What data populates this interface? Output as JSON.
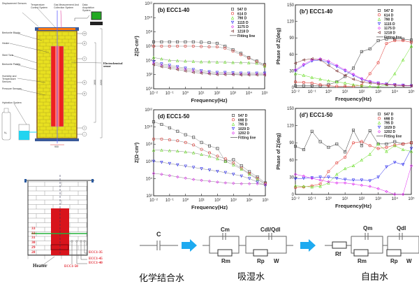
{
  "apparatus": {
    "labels": {
      "displacement": "Displacement Sensors",
      "temperature": "Temperature Control System",
      "gas": "Gas Measurement And Collection System",
      "daq": "Data Acquisition System",
      "blocks": "Bentonite Blocks",
      "heater": "Heater",
      "tank": "Steel Tank",
      "pellets": "Bentonite Pellets",
      "humidity": "Humidity and Temperature Sensors",
      "pressure": "Pressure Sensors",
      "hydration": "Hydration System",
      "electrochem": "Electrochemical sensor",
      "n2": "N₂",
      "dim_height": "2200",
      "dim_mid": "1600",
      "dim_width": "900"
    },
    "roman": [
      "VII",
      "VI",
      "V",
      "IV",
      "III",
      "II",
      "I"
    ]
  },
  "tank_section": {
    "layers": [
      "33",
      "32",
      "31",
      "30",
      "29",
      "28"
    ],
    "heater_label": "Heater",
    "sensors": [
      "ECC1-35",
      "ECC1-40",
      "ECC1-45",
      "ECC1-50"
    ],
    "colors": {
      "heater": "#d8141c",
      "line": "#22b03a",
      "label": "#e0202a"
    }
  },
  "circuits": {
    "c1": {
      "C": "C",
      "caption": "化学结合水"
    },
    "c2": {
      "Cm": "Cm",
      "Cdl": "Cdl/Qdl",
      "Rm": "Rm",
      "Rp": "Rp",
      "W": "W",
      "caption": "吸湿水"
    },
    "c3": {
      "Rf": "Rf",
      "Qm": "Qm",
      "Qdl": "Qdl",
      "Rm": "Rm",
      "Rp": "Rp",
      "W": "W",
      "caption": "自由水"
    },
    "arrow_color": "#1eaaf0"
  },
  "chart_data": [
    {
      "id": "b",
      "type": "scatter",
      "title": "(b) ECC1-40",
      "xlabel": "Frequency(Hz)",
      "ylabel": "Z(Ω·cm²)",
      "xscale": "log",
      "yscale": "log",
      "xlim_log": [
        -2,
        5
      ],
      "ylim_log": [
        0,
        12
      ],
      "xticks": [
        "10⁻²",
        "10⁻¹",
        "10⁰",
        "10¹",
        "10²",
        "10³",
        "10⁴",
        "10⁵"
      ],
      "yticks": [
        "10⁰",
        "10²",
        "10⁴",
        "10⁶",
        "10⁸",
        "10¹⁰",
        "10¹²"
      ],
      "ytick_step": 2,
      "legend": "top-right",
      "fit_label": "Fitting line",
      "x_log": [
        -2,
        -1.5,
        -1,
        -0.5,
        0,
        0.5,
        1,
        1.5,
        2,
        2.5,
        3,
        3.5,
        4,
        4.5,
        5
      ],
      "series": [
        {
          "name": "547 D",
          "marker": "square",
          "color": "#333333",
          "values": [
            6.6,
            6.6,
            6.6,
            6.6,
            6.6,
            6.6,
            6.55,
            6.5,
            6.4,
            6.0,
            5.5,
            5.0,
            4.4,
            3.9,
            3.4
          ]
        },
        {
          "name": "614 D",
          "marker": "circle",
          "color": "#e0302a",
          "values": [
            6.0,
            6.0,
            6.0,
            6.0,
            6.0,
            6.0,
            5.95,
            5.9,
            5.9,
            5.7,
            5.3,
            4.8,
            4.3,
            3.8,
            3.3
          ]
        },
        {
          "name": "790 D",
          "marker": "triangle-up",
          "color": "#66dd22",
          "values": [
            4.4,
            4.2,
            4.0,
            3.95,
            3.9,
            3.85,
            3.8,
            3.8,
            3.75,
            3.75,
            3.7,
            3.7,
            3.65,
            3.6,
            3.2
          ]
        },
        {
          "name": "1115 D",
          "marker": "triangle-down",
          "color": "#2222ee",
          "values": [
            3.8,
            3.5,
            3.3,
            3.1,
            2.9,
            2.7,
            2.55,
            2.4,
            2.3,
            2.3,
            2.25,
            2.2,
            2.2,
            2.2,
            2.2
          ]
        },
        {
          "name": "1175 D",
          "marker": "diamond",
          "color": "#dd22ee",
          "values": [
            3.6,
            3.3,
            3.1,
            2.9,
            2.7,
            2.5,
            2.35,
            2.2,
            2.1,
            2.1,
            2.05,
            2.05,
            2.05,
            2.05,
            2.05
          ]
        },
        {
          "name": "1218 D",
          "marker": "triangle-left",
          "color": "#7a3030",
          "values": [
            3.4,
            3.1,
            2.9,
            2.7,
            2.5,
            2.3,
            2.2,
            2.1,
            2.0,
            2.0,
            2.0,
            1.95,
            1.95,
            1.95,
            1.95
          ]
        }
      ]
    },
    {
      "id": "b2",
      "type": "scatter",
      "title": "(b') ECC1-40",
      "xlabel": "Frequency(Hz)",
      "ylabel": "Phase of Z(deg)",
      "xscale": "log",
      "xlim_log": [
        -2,
        5
      ],
      "ylim": [
        0,
        150
      ],
      "xticks": [
        "10⁻²",
        "10⁻¹",
        "10⁰",
        "10¹",
        "10²",
        "10³",
        "10⁴",
        "10⁵"
      ],
      "yticks": [
        "0",
        "30",
        "60",
        "90",
        "120",
        "150"
      ],
      "ytick_step": 30,
      "legend": "top-right",
      "fit_label": "Fitting line",
      "x_log": [
        -2,
        -1.5,
        -1,
        -0.5,
        0,
        0.5,
        1,
        1.5,
        2,
        2.5,
        3,
        3.5,
        4,
        4.5,
        5
      ],
      "series": [
        {
          "name": "547 D",
          "marker": "square",
          "color": "#333333",
          "values": [
            3,
            3,
            3,
            3,
            5,
            10,
            20,
            35,
            65,
            70,
            85,
            88,
            88,
            88,
            86
          ]
        },
        {
          "name": "614 D",
          "marker": "circle",
          "color": "#e0302a",
          "values": [
            10,
            9,
            8,
            5,
            3,
            2,
            2,
            2,
            4,
            25,
            45,
            80,
            85,
            85,
            82
          ]
        },
        {
          "name": "790 D",
          "marker": "triangle-up",
          "color": "#66dd22",
          "values": [
            25,
            22,
            18,
            15,
            12,
            10,
            8,
            5,
            3,
            2,
            1,
            5,
            25,
            50,
            75
          ]
        },
        {
          "name": "1115 D",
          "marker": "triangle-down",
          "color": "#2222ee",
          "values": [
            30,
            40,
            48,
            50,
            45,
            38,
            30,
            22,
            15,
            10,
            8,
            6,
            5,
            4,
            3
          ]
        },
        {
          "name": "1175 D",
          "marker": "diamond",
          "color": "#dd22ee",
          "values": [
            32,
            42,
            50,
            52,
            48,
            40,
            32,
            24,
            16,
            11,
            8,
            6,
            5,
            4,
            3
          ]
        },
        {
          "name": "1218 D",
          "marker": "triangle-left",
          "color": "#7a3030",
          "values": [
            44,
            50,
            52,
            50,
            40,
            30,
            22,
            15,
            10,
            8,
            6,
            5,
            4,
            3,
            3
          ]
        }
      ]
    },
    {
      "id": "d",
      "type": "scatter",
      "title": "(d) ECC1-50",
      "xlabel": "Frequency(Hz)",
      "ylabel": "Z(Ω·cm²)",
      "xscale": "log",
      "yscale": "log",
      "xlim_log": [
        -2,
        5
      ],
      "ylim_log": [
        2,
        12
      ],
      "xticks": [
        "10⁻²",
        "10⁻¹",
        "10⁰",
        "10¹",
        "10²",
        "10³",
        "10⁴",
        "10⁵"
      ],
      "yticks": [
        "10²",
        "10⁴",
        "10⁶",
        "10⁸",
        "10¹⁰",
        "10¹²"
      ],
      "ytick_step": 2,
      "legend": "top-right",
      "fit_label": "Fitting line",
      "x_log": [
        -2,
        -1.5,
        -1,
        -0.5,
        0,
        0.5,
        1,
        1.5,
        2,
        2.5,
        3,
        3.5,
        4,
        4.5,
        5
      ],
      "series": [
        {
          "name": "547 D",
          "marker": "square",
          "color": "#333333",
          "values": [
            10.6,
            10.3,
            9.9,
            9.5,
            9.1,
            8.8,
            8.2,
            7.8,
            7.5,
            6.0,
            6.2,
            5.5,
            4.8,
            4.2,
            3.5
          ]
        },
        {
          "name": "698 D",
          "marker": "circle",
          "color": "#e0302a",
          "values": [
            8.6,
            8.6,
            8.5,
            8.4,
            8.2,
            7.9,
            7.4,
            7.0,
            6.6,
            6.3,
            5.8,
            5.2,
            4.6,
            4.0,
            3.4
          ]
        },
        {
          "name": "795 D",
          "marker": "triangle-up",
          "color": "#66dd22",
          "values": [
            7.3,
            7.3,
            7.25,
            7.2,
            7.1,
            7.0,
            6.8,
            6.6,
            6.3,
            6.0,
            5.6,
            5.1,
            4.5,
            3.9,
            3.3
          ]
        },
        {
          "name": "1029 D",
          "marker": "triangle-down",
          "color": "#2222ee",
          "values": [
            6.0,
            5.9,
            5.75,
            5.6,
            5.45,
            5.3,
            5.15,
            5.0,
            4.85,
            4.7,
            4.5,
            4.3,
            4.0,
            3.6,
            3.2
          ]
        },
        {
          "name": "1202 D",
          "marker": "diamond",
          "color": "#dd22ee",
          "values": [
            4.6,
            4.5,
            4.35,
            4.2,
            4.05,
            3.9,
            3.8,
            3.7,
            3.6,
            3.5,
            3.45,
            3.4,
            3.4,
            3.4,
            3.3
          ]
        }
      ]
    },
    {
      "id": "d2",
      "type": "scatter",
      "title": "(d') ECC1-50",
      "xlabel": "Frequency(Hz)",
      "ylabel": "Phase of Z(deg)",
      "xscale": "log",
      "xlim_log": [
        -2,
        5
      ],
      "ylim": [
        0,
        150
      ],
      "xticks": [
        "10⁻²",
        "10⁻¹",
        "10⁰",
        "10¹",
        "10²",
        "10³",
        "10⁴",
        "10⁵"
      ],
      "yticks": [
        "0",
        "30",
        "60",
        "90",
        "120",
        "150"
      ],
      "ytick_step": 30,
      "legend": "top-right",
      "fit_label": "Fitting line",
      "x_log": [
        -2,
        -1.5,
        -1,
        -0.5,
        0,
        0.5,
        1,
        1.5,
        2,
        2.5,
        3,
        3.5,
        4,
        4.5,
        5
      ],
      "series": [
        {
          "name": "547 D",
          "marker": "square",
          "color": "#333333",
          "values": [
            84,
            78,
            110,
            92,
            82,
            88,
            74,
            112,
            85,
            111,
            88,
            88,
            92,
            88,
            90
          ]
        },
        {
          "name": "698 D",
          "marker": "circle",
          "color": "#e0302a",
          "values": [
            12,
            13,
            15,
            18,
            40,
            55,
            65,
            90,
            92,
            85,
            80,
            82,
            86,
            88,
            90
          ]
        },
        {
          "name": "795 D",
          "marker": "triangle-up",
          "color": "#66dd22",
          "values": [
            15,
            14,
            13,
            14,
            20,
            35,
            45,
            50,
            60,
            70,
            88,
            75,
            85,
            78,
            75
          ]
        },
        {
          "name": "1029 D",
          "marker": "triangle-down",
          "color": "#2222ee",
          "values": [
            27,
            28,
            29,
            30,
            30,
            28,
            26,
            25,
            25,
            24,
            30,
            48,
            56,
            52,
            80
          ]
        },
        {
          "name": "1202 D",
          "marker": "diamond",
          "color": "#dd22ee",
          "values": [
            35,
            32,
            28,
            25,
            22,
            20,
            20,
            18,
            16,
            14,
            10,
            5,
            0,
            0,
            50
          ]
        }
      ]
    }
  ]
}
